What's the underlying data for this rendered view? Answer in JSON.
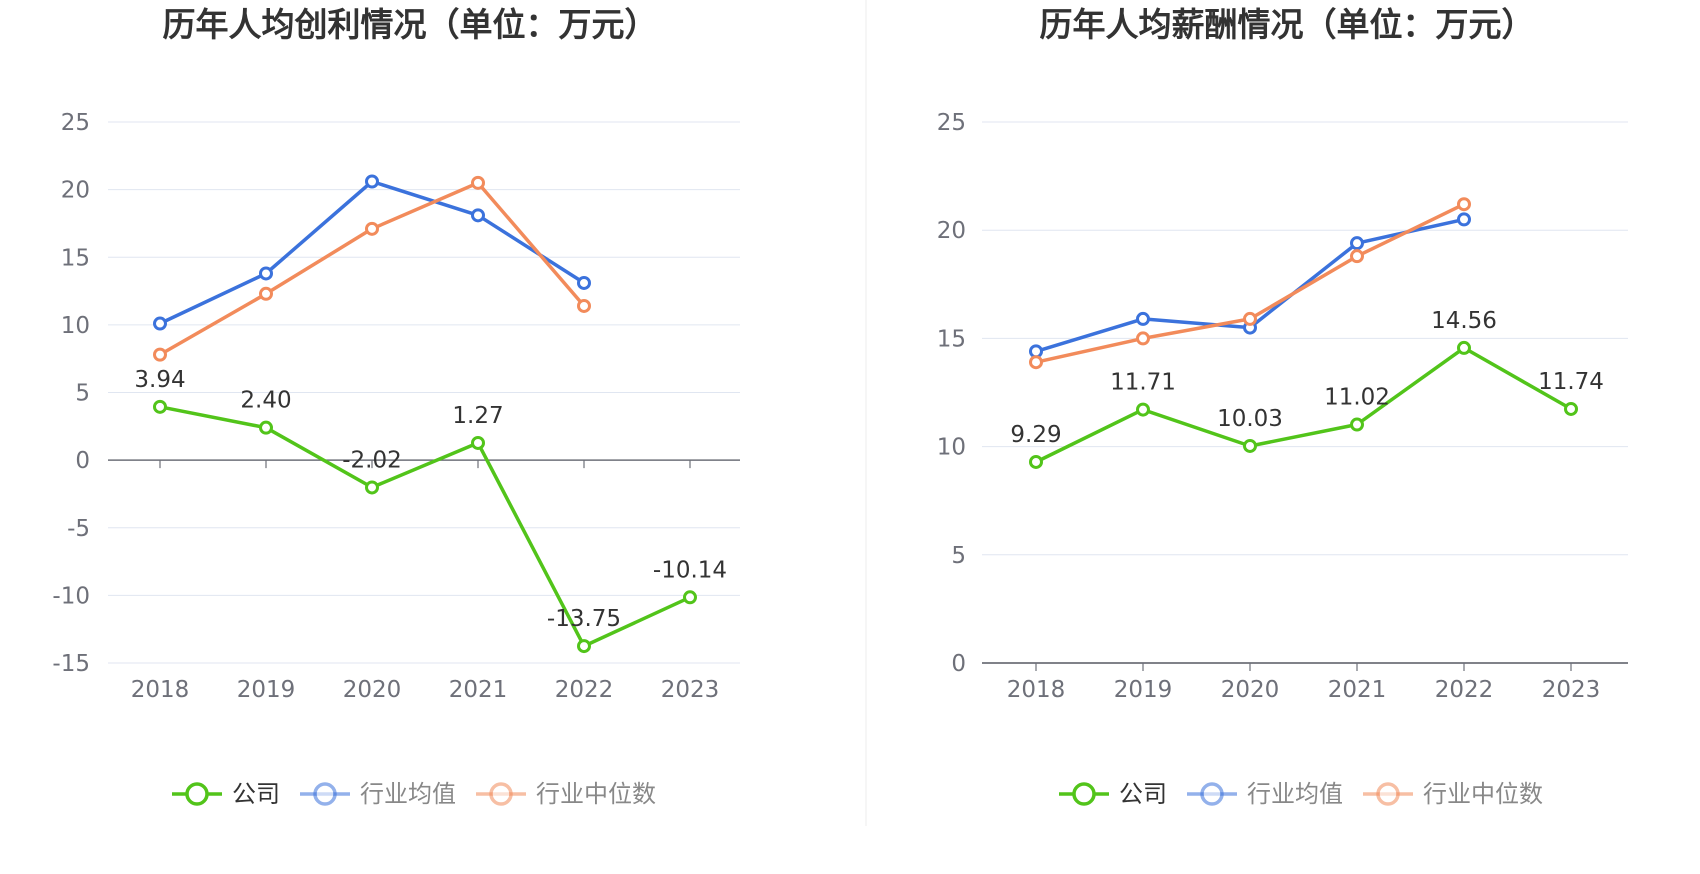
{
  "colors": {
    "company": "#52c41a",
    "industry_avg": "#3b72dc",
    "industry_median": "#f28b5b",
    "grid": "#e0e6f1",
    "axis": "#6e7079",
    "divider": "#eeeeee"
  },
  "chart_data": [
    {
      "type": "line",
      "title": "历年人均创利情况（单位：万元）",
      "categories": [
        "2018",
        "2019",
        "2020",
        "2021",
        "2022",
        "2023"
      ],
      "ylim": [
        -15,
        25
      ],
      "yticks": [
        25,
        20,
        15,
        10,
        5,
        0,
        -5,
        -10,
        -15
      ],
      "ytick_labels": [
        "25",
        "20",
        "15",
        "10",
        "5",
        "0",
        "-5",
        "-10",
        "-15"
      ],
      "grid": true,
      "legend_position": "bottom",
      "series": [
        {
          "name": "公司",
          "key": "company",
          "values": [
            3.94,
            2.4,
            -2.02,
            1.27,
            -13.75,
            -10.14
          ],
          "labels": [
            "3.94",
            "2.40",
            "-2.02",
            "1.27",
            "-13.75",
            "-10.14"
          ]
        },
        {
          "name": "行业均值",
          "key": "industry_avg",
          "values": [
            10.1,
            13.8,
            20.6,
            18.1,
            13.1,
            null
          ]
        },
        {
          "name": "行业中位数",
          "key": "industry_median",
          "values": [
            7.8,
            12.3,
            17.1,
            20.5,
            11.4,
            null
          ]
        }
      ]
    },
    {
      "type": "line",
      "title": "历年人均薪酬情况（单位：万元）",
      "categories": [
        "2018",
        "2019",
        "2020",
        "2021",
        "2022",
        "2023"
      ],
      "ylim": [
        0,
        25
      ],
      "yticks": [
        25,
        20,
        15,
        10,
        5,
        0
      ],
      "ytick_labels": [
        "25",
        "20",
        "15",
        "10",
        "5",
        "0"
      ],
      "grid": true,
      "legend_position": "bottom",
      "series": [
        {
          "name": "公司",
          "key": "company",
          "values": [
            9.29,
            11.71,
            10.03,
            11.02,
            14.56,
            11.74
          ],
          "labels": [
            "9.29",
            "11.71",
            "10.03",
            "11.02",
            "14.56",
            "11.74"
          ]
        },
        {
          "name": "行业均值",
          "key": "industry_avg",
          "values": [
            14.4,
            15.9,
            15.5,
            19.4,
            20.5,
            null
          ]
        },
        {
          "name": "行业中位数",
          "key": "industry_median",
          "values": [
            13.9,
            15.0,
            15.9,
            18.8,
            21.2,
            null
          ]
        }
      ]
    }
  ]
}
